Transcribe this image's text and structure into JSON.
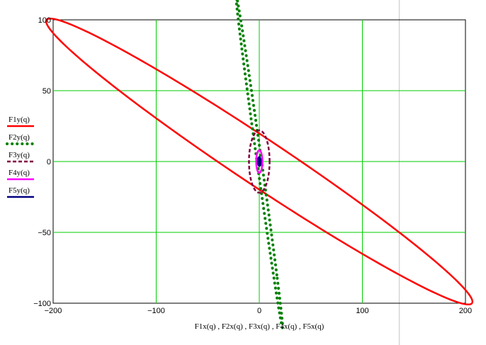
{
  "chart_data": {
    "type": "line",
    "title": "",
    "xlabel": "F1x(q) , F2x(q) , F3x(q) , F4x(q) , F5x(q)",
    "ylabel": "",
    "xlim": [
      -200,
      200
    ],
    "ylim": [
      -100,
      100
    ],
    "xticks": [
      -200,
      -100,
      0,
      100,
      200
    ],
    "yticks": [
      -100,
      -50,
      0,
      50,
      100
    ],
    "xtick_labels": [
      "−200",
      "−100",
      "0",
      "100",
      "200"
    ],
    "ytick_labels": [
      "−100",
      "−50",
      "0",
      "50",
      "100"
    ],
    "grid": true,
    "legend_position": "left",
    "series": [
      {
        "name": "F1y(q)",
        "color": "#ff0000",
        "style": "solid",
        "shape": "ellipse",
        "center": [
          0,
          0
        ],
        "x_extent": [
          -160,
          160
        ],
        "top_point": [
          -131,
          78
        ],
        "bottom_point": [
          131,
          -78
        ],
        "left_point": [
          -160,
          64
        ],
        "right_point": [
          160,
          -64
        ]
      },
      {
        "name": "F2y(q)",
        "color": "#008000",
        "style": "dotted",
        "shape": "ellipse",
        "center": [
          0,
          0
        ],
        "top_point": [
          -15,
          86
        ],
        "bottom_point": [
          15,
          -86
        ],
        "left_point": [
          -17,
          80
        ],
        "right_point": [
          17,
          -80
        ]
      },
      {
        "name": "F3y(q)",
        "color": "#800040",
        "style": "dashed",
        "shape": "ellipse",
        "center": [
          0,
          0
        ],
        "top_point": [
          0,
          22
        ],
        "bottom_point": [
          0,
          -22
        ],
        "left_point": [
          -10,
          0
        ],
        "right_point": [
          10,
          0
        ]
      },
      {
        "name": "F4y(q)",
        "color": "#ff00ff",
        "style": "solid",
        "shape": "ellipse",
        "center": [
          0,
          0
        ],
        "top_point": [
          0,
          8
        ],
        "bottom_point": [
          0,
          -8
        ],
        "left_point": [
          -3,
          0
        ],
        "right_point": [
          3,
          0
        ]
      },
      {
        "name": "F5y(q)",
        "color": "#000080",
        "style": "solid",
        "shape": "ellipse",
        "center": [
          0,
          0
        ],
        "top_point": [
          0,
          3
        ],
        "bottom_point": [
          0,
          -3
        ],
        "left_point": [
          -1.2,
          0
        ],
        "right_point": [
          1.2,
          0
        ]
      }
    ]
  }
}
